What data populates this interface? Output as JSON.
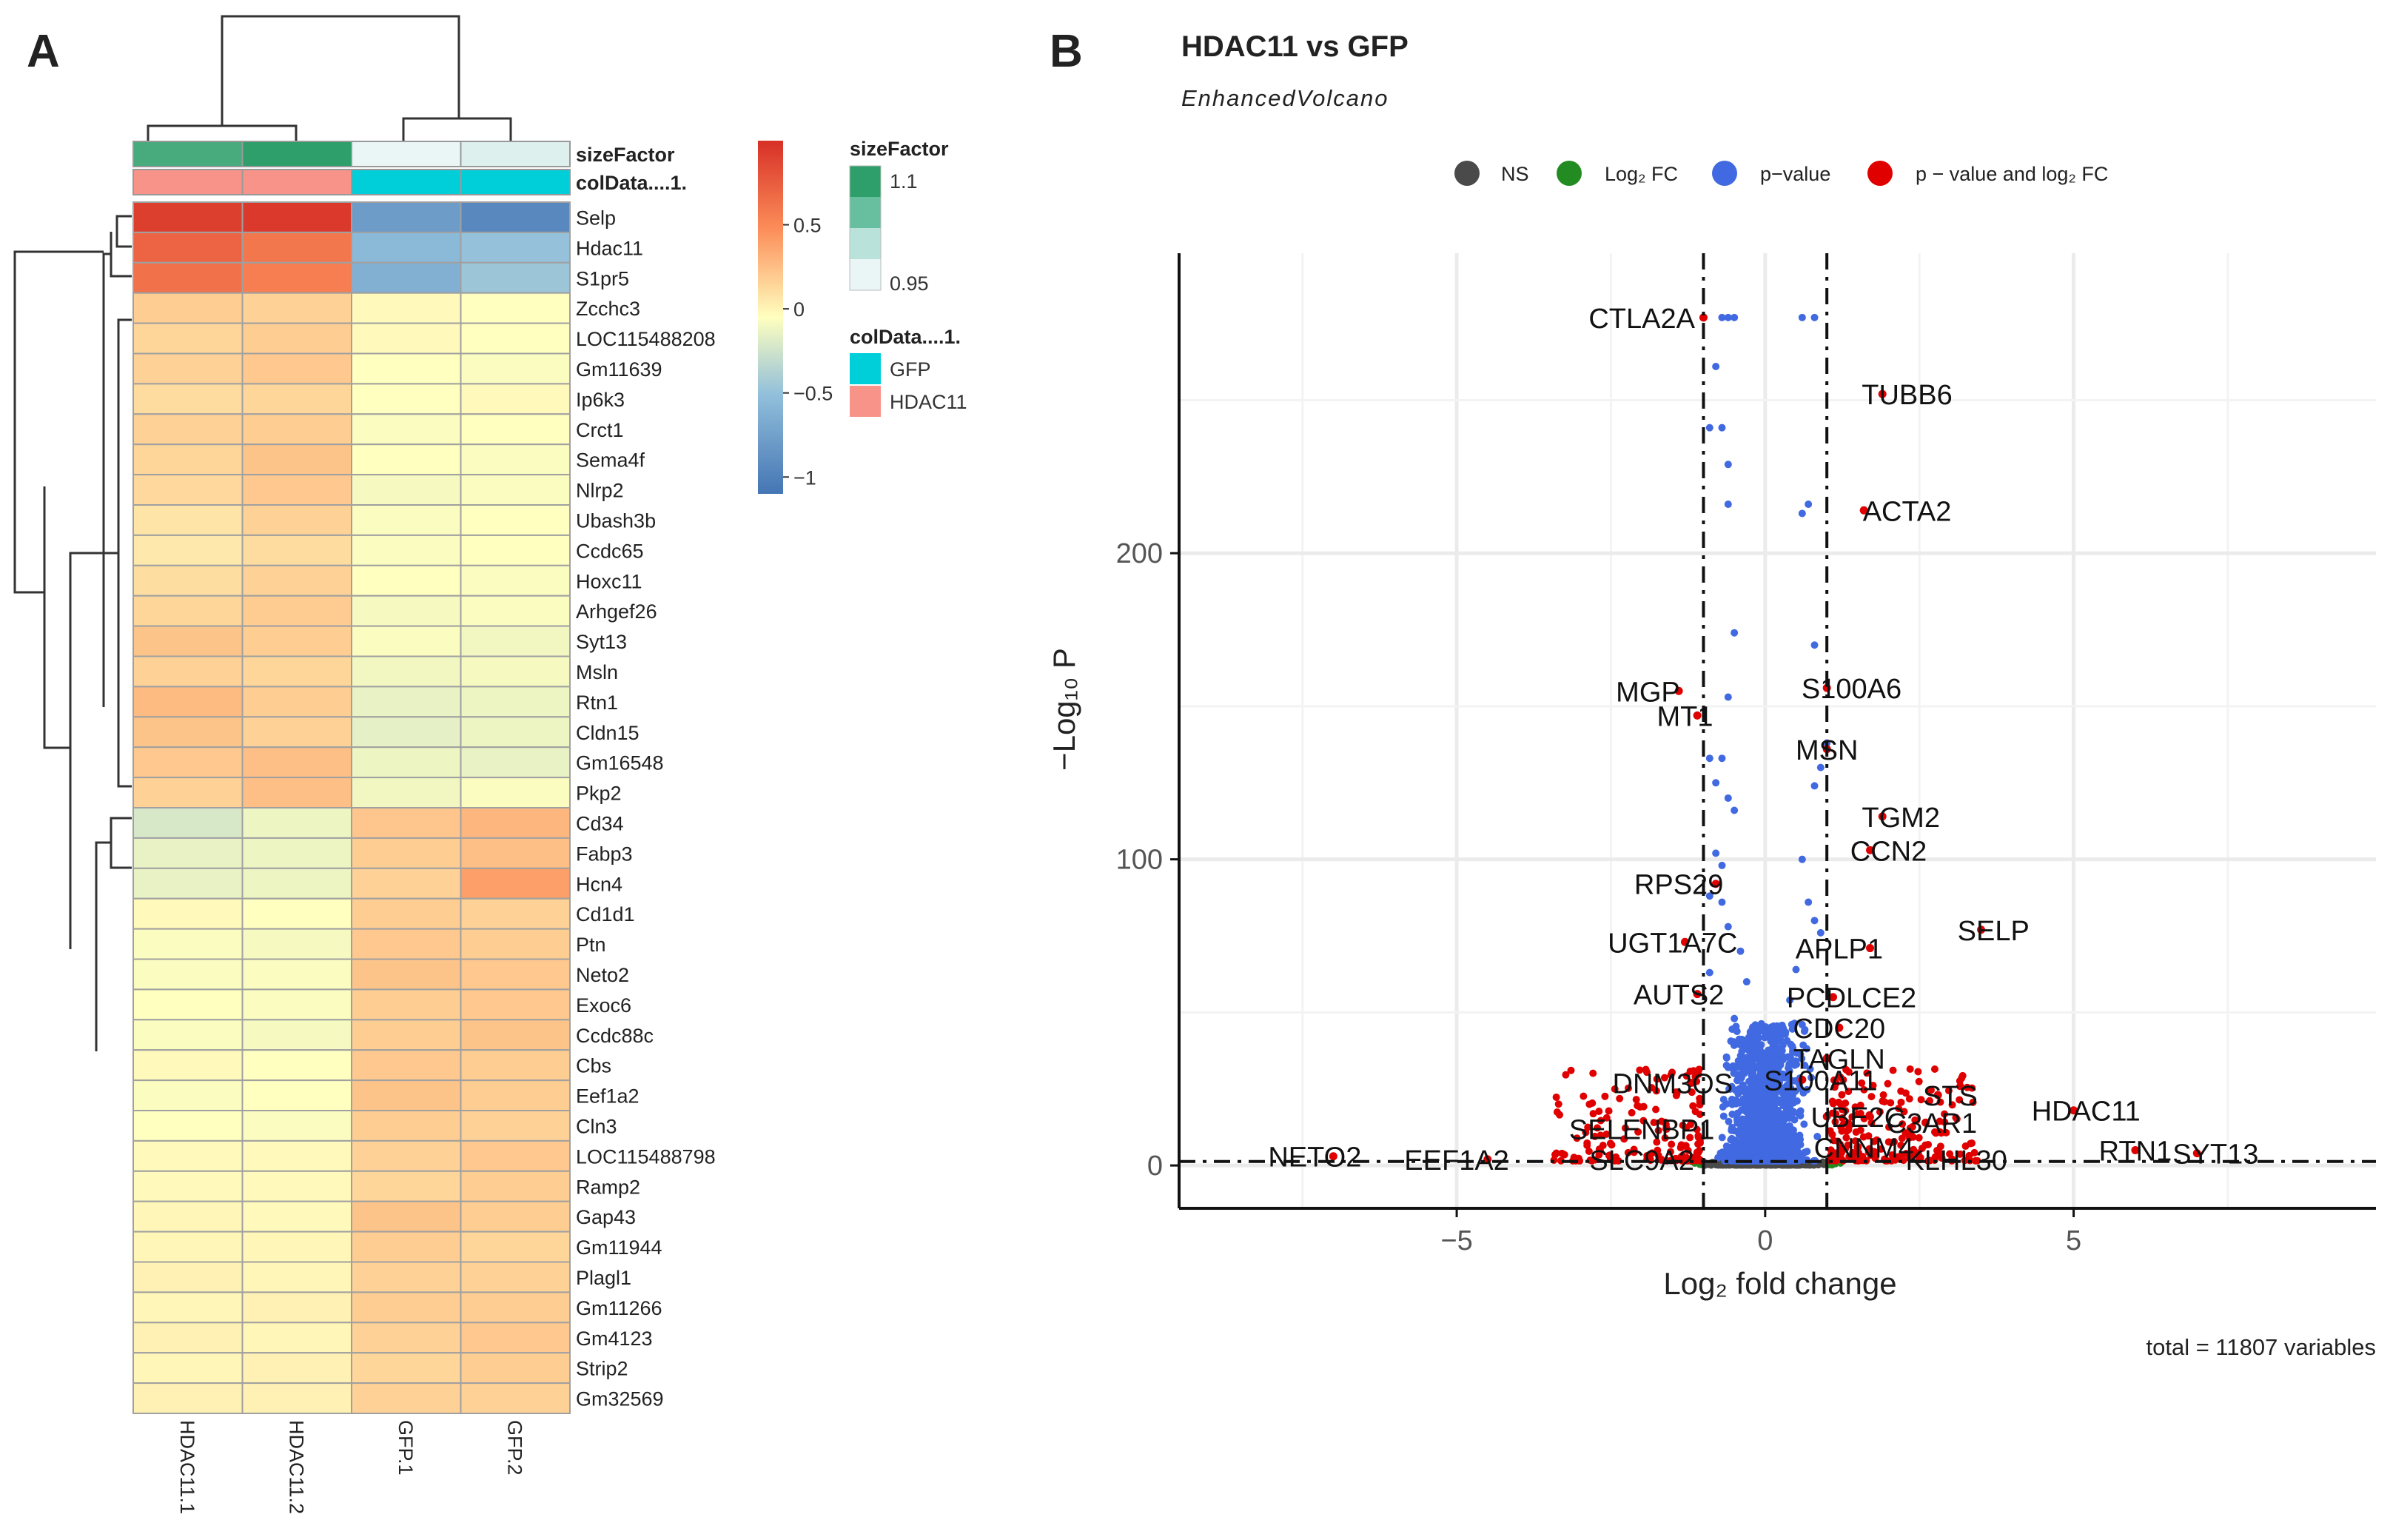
{
  "chart_data": [
    {
      "type": "heatmap",
      "panel_label": "A",
      "columns": [
        "HDAC11.1",
        "HDAC11.2",
        "GFP.1",
        "GFP.2"
      ],
      "annotations": {
        "sizeFactor_label": "sizeFactor",
        "colData_label": "colData....1.",
        "sizeFactor_values": [
          1.08,
          1.1,
          0.95,
          0.96
        ],
        "colData_values": [
          "HDAC11",
          "HDAC11",
          "GFP",
          "GFP"
        ]
      },
      "rows": [
        {
          "gene": "Selp",
          "values": [
            0.92,
            0.95,
            -0.78,
            -0.95
          ]
        },
        {
          "gene": "Hdac11",
          "values": [
            0.72,
            0.62,
            -0.55,
            -0.48
          ]
        },
        {
          "gene": "S1pr5",
          "values": [
            0.65,
            0.58,
            -0.62,
            -0.45
          ]
        },
        {
          "gene": "Zcchc3",
          "values": [
            0.22,
            0.2,
            0.02,
            0.0
          ]
        },
        {
          "gene": "LOC115488208",
          "values": [
            0.18,
            0.22,
            0.02,
            0.0
          ]
        },
        {
          "gene": "Gm11639",
          "values": [
            0.2,
            0.24,
            0.0,
            -0.02
          ]
        },
        {
          "gene": "Ip6k3",
          "values": [
            0.16,
            0.18,
            0.0,
            0.02
          ]
        },
        {
          "gene": "Crct1",
          "values": [
            0.2,
            0.22,
            -0.02,
            0.0
          ]
        },
        {
          "gene": "Sema4f",
          "values": [
            0.18,
            0.26,
            0.0,
            -0.02
          ]
        },
        {
          "gene": "Nlrp2",
          "values": [
            0.17,
            0.24,
            -0.04,
            -0.02
          ]
        },
        {
          "gene": "Ubash3b",
          "values": [
            0.12,
            0.2,
            -0.02,
            0.0
          ]
        },
        {
          "gene": "Ccdc65",
          "values": [
            0.1,
            0.16,
            -0.02,
            0.0
          ]
        },
        {
          "gene": "Hoxc11",
          "values": [
            0.15,
            0.2,
            0.0,
            -0.02
          ]
        },
        {
          "gene": "Arhgef26",
          "values": [
            0.18,
            0.23,
            -0.04,
            -0.02
          ]
        },
        {
          "gene": "Syt13",
          "values": [
            0.26,
            0.22,
            -0.02,
            -0.06
          ]
        },
        {
          "gene": "Msln",
          "values": [
            0.2,
            0.18,
            -0.06,
            -0.04
          ]
        },
        {
          "gene": "Rtn1",
          "values": [
            0.3,
            0.22,
            -0.1,
            -0.08
          ]
        },
        {
          "gene": "Cldn15",
          "values": [
            0.26,
            0.2,
            -0.12,
            -0.08
          ]
        },
        {
          "gene": "Gm16548",
          "values": [
            0.24,
            0.28,
            -0.08,
            -0.1
          ]
        },
        {
          "gene": "Pkp2",
          "values": [
            0.2,
            0.28,
            -0.06,
            -0.02
          ]
        },
        {
          "gene": "Cd34",
          "values": [
            -0.18,
            -0.08,
            0.25,
            0.32
          ]
        },
        {
          "gene": "Fabp3",
          "values": [
            -0.1,
            -0.08,
            0.22,
            0.28
          ]
        },
        {
          "gene": "Hcn4",
          "values": [
            -0.1,
            -0.08,
            0.2,
            0.42
          ]
        },
        {
          "gene": "Cd1d1",
          "values": [
            0.02,
            0.0,
            0.22,
            0.2
          ]
        },
        {
          "gene": "Ptn",
          "values": [
            -0.02,
            -0.04,
            0.24,
            0.22
          ]
        },
        {
          "gene": "Neto2",
          "values": [
            -0.02,
            -0.02,
            0.26,
            0.24
          ]
        },
        {
          "gene": "Exoc6",
          "values": [
            0.0,
            -0.02,
            0.22,
            0.24
          ]
        },
        {
          "gene": "Ccdc88c",
          "values": [
            -0.02,
            -0.04,
            0.22,
            0.26
          ]
        },
        {
          "gene": "Cbs",
          "values": [
            0.02,
            0.0,
            0.24,
            0.22
          ]
        },
        {
          "gene": "Eef1a2",
          "values": [
            -0.02,
            0.0,
            0.26,
            0.22
          ]
        },
        {
          "gene": "Cln3",
          "values": [
            0.0,
            -0.02,
            0.22,
            0.2
          ]
        },
        {
          "gene": "LOC115488798",
          "values": [
            0.02,
            0.02,
            0.2,
            0.24
          ]
        },
        {
          "gene": "Ramp2",
          "values": [
            0.02,
            0.02,
            0.18,
            0.22
          ]
        },
        {
          "gene": "Gap43",
          "values": [
            0.04,
            0.02,
            0.26,
            0.22
          ]
        },
        {
          "gene": "Gm11944",
          "values": [
            0.04,
            0.04,
            0.22,
            0.18
          ]
        },
        {
          "gene": "Plagl1",
          "values": [
            0.06,
            0.04,
            0.2,
            0.2
          ]
        },
        {
          "gene": "Gm11266",
          "values": [
            0.04,
            0.06,
            0.22,
            0.22
          ]
        },
        {
          "gene": "Gm4123",
          "values": [
            0.06,
            0.04,
            0.2,
            0.24
          ]
        },
        {
          "gene": "Strip2",
          "values": [
            0.04,
            0.06,
            0.18,
            0.22
          ]
        },
        {
          "gene": "Gm32569",
          "values": [
            0.06,
            0.06,
            0.2,
            0.2
          ]
        }
      ],
      "colorbar": {
        "ticks": [
          0.5,
          0,
          -0.5,
          -1
        ],
        "tick_labels": [
          "0.5",
          "0",
          "−0.5",
          "−1"
        ],
        "range": [
          -1.1,
          1.0
        ]
      },
      "legend": {
        "sizeFactor_title": "sizeFactor",
        "sizeFactor_labels": [
          "1.1",
          "0.95"
        ],
        "colData_title": "colData....1.",
        "colData_entries": [
          {
            "label": "GFP",
            "color": "#00CED8"
          },
          {
            "label": "HDAC11",
            "color": "#F8938A"
          }
        ]
      }
    },
    {
      "type": "scatter",
      "panel_label": "B",
      "title": "HDAC11 vs GFP",
      "subtitle": "EnhancedVolcano",
      "xlabel": "Log₂ fold change",
      "ylabel": "−Log₁₀ P",
      "xlim": [
        -9.5,
        9.9
      ],
      "ylim": [
        -14,
        298
      ],
      "xticks": [
        -5,
        0,
        5
      ],
      "xtick_labels": [
        "−5",
        "0",
        "5"
      ],
      "yticks": [
        0,
        100,
        200
      ],
      "fc_cutoff": 1,
      "p_cutoff_neglog10": 1.3,
      "caption": "total = 11807 variables",
      "legend": [
        {
          "label": "NS",
          "color": "#4a4a4a"
        },
        {
          "label": "Log₂ FC",
          "color": "#228B22"
        },
        {
          "label": "p−value",
          "color": "#4169E1"
        },
        {
          "label": "p − value and log₂ FC",
          "color": "#E00000"
        }
      ],
      "labeled_genes": [
        {
          "gene": "CTLA2A",
          "x": -1.0,
          "y": 277,
          "tx": -2.0
        },
        {
          "gene": "TUBB6",
          "x": 1.9,
          "y": 252,
          "tx": 2.3
        },
        {
          "gene": "ACTA2",
          "x": 1.6,
          "y": 214,
          "tx": 2.3
        },
        {
          "gene": "S100A6",
          "x": 1.0,
          "y": 156,
          "tx": 1.4
        },
        {
          "gene": "MGP",
          "x": -1.4,
          "y": 155,
          "tx": -1.9
        },
        {
          "gene": "MT1",
          "x": -1.1,
          "y": 147,
          "tx": -1.3
        },
        {
          "gene": "MSN",
          "x": 1.0,
          "y": 136,
          "tx": 1.0
        },
        {
          "gene": "TGM2",
          "x": 1.9,
          "y": 114,
          "tx": 2.2
        },
        {
          "gene": "CCN2",
          "x": 1.7,
          "y": 103,
          "tx": 2.0
        },
        {
          "gene": "RPS29",
          "x": -0.8,
          "y": 92,
          "tx": -1.4
        },
        {
          "gene": "SELP",
          "x": 3.5,
          "y": 77,
          "tx": 3.7
        },
        {
          "gene": "UGT1A7C",
          "x": -1.3,
          "y": 73,
          "tx": -1.5
        },
        {
          "gene": "APLP1",
          "x": 1.7,
          "y": 71,
          "tx": 1.2
        },
        {
          "gene": "AUTS2",
          "x": -1.1,
          "y": 56,
          "tx": -1.4
        },
        {
          "gene": "PCDLCE2",
          "x": 1.1,
          "y": 55,
          "tx": 1.4
        },
        {
          "gene": "CDC20",
          "x": 1.2,
          "y": 45,
          "tx": 1.2
        },
        {
          "gene": "TAGLN",
          "x": 1.0,
          "y": 35,
          "tx": 1.2
        },
        {
          "gene": "DNM3OS",
          "x": -1.2,
          "y": 27,
          "tx": -1.5
        },
        {
          "gene": "S100A11",
          "x": 0.6,
          "y": 28,
          "tx": 0.9
        },
        {
          "gene": "STS",
          "x": 2.8,
          "y": 23,
          "tx": 3.0
        },
        {
          "gene": "HDAC11",
          "x": 5.0,
          "y": 18,
          "tx": 5.2
        },
        {
          "gene": "UBE2C",
          "x": 1.0,
          "y": 16,
          "tx": 1.5
        },
        {
          "gene": "C3AR1",
          "x": 2.6,
          "y": 14,
          "tx": 2.7
        },
        {
          "gene": "SELENBP1",
          "x": -1.6,
          "y": 12,
          "tx": -2.0
        },
        {
          "gene": "CNNM4",
          "x": 1.5,
          "y": 6,
          "tx": 1.6
        },
        {
          "gene": "NETO2",
          "x": -7.0,
          "y": 3,
          "tx": -7.3
        },
        {
          "gene": "EEF1A2",
          "x": -4.5,
          "y": 2,
          "tx": -5.0
        },
        {
          "gene": "SLC9A2",
          "x": -2.5,
          "y": 2,
          "tx": -2.0
        },
        {
          "gene": "KLHL30",
          "x": 2.5,
          "y": 2,
          "tx": 3.1
        },
        {
          "gene": "RTN1",
          "x": 6.0,
          "y": 5,
          "tx": 6.0
        },
        {
          "gene": "SYT13",
          "x": 7.0,
          "y": 4,
          "tx": 7.3
        }
      ]
    }
  ]
}
